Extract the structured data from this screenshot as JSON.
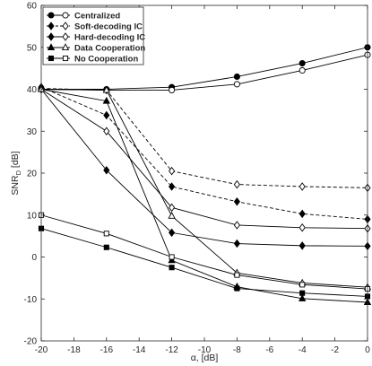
{
  "chart_data": {
    "type": "line",
    "xlabel": "α, [dB]",
    "ylabel": "SNR_D [dB]",
    "xlim": [
      -20,
      0
    ],
    "ylim": [
      -20,
      60
    ],
    "xticks": [
      -20,
      -18,
      -16,
      -14,
      -12,
      -10,
      -8,
      -6,
      -4,
      -2,
      0
    ],
    "yticks": [
      -20,
      -10,
      0,
      10,
      20,
      30,
      40,
      50,
      60
    ],
    "xtick_labels": [
      "-20",
      "-18",
      "-16",
      "-14",
      "-12",
      "-10",
      "-8",
      "-6",
      "-4",
      "-2",
      "0"
    ],
    "ytick_labels": [
      "-20",
      "-10",
      "0",
      "10",
      "20",
      "30",
      "40",
      "50",
      "60"
    ],
    "grid": false,
    "legend_position": "top-left",
    "x": [
      -20,
      -16,
      -12,
      -8,
      -4,
      0
    ],
    "series": [
      {
        "name": "Centralized",
        "style": "solid",
        "marker": "circle",
        "filled": true,
        "values": [
          40,
          40,
          40.5,
          43,
          46.2,
          50
        ]
      },
      {
        "name": "Centralized",
        "style": "solid",
        "marker": "circle",
        "filled": false,
        "values": [
          40,
          39.8,
          39.8,
          41.2,
          44.5,
          48.2
        ]
      },
      {
        "name": "Soft-decoding IC",
        "style": "dashed",
        "marker": "diamond",
        "filled": true,
        "values": [
          40.5,
          33.8,
          16.8,
          13.2,
          10.3,
          9
        ]
      },
      {
        "name": "Soft-decoding IC",
        "style": "dashed",
        "marker": "diamond",
        "filled": false,
        "values": [
          40.2,
          39.8,
          20.5,
          17.3,
          16.8,
          16.5
        ]
      },
      {
        "name": "Hard-decoding IC",
        "style": "solid",
        "marker": "diamond",
        "filled": true,
        "values": [
          40,
          20.7,
          5.8,
          3.2,
          2.7,
          2.6
        ]
      },
      {
        "name": "Hard-decoding IC",
        "style": "solid",
        "marker": "diamond",
        "filled": false,
        "values": [
          40,
          30,
          11.8,
          7.6,
          7,
          6.8
        ]
      },
      {
        "name": "Data Cooperation",
        "style": "solid",
        "marker": "triangle",
        "filled": true,
        "values": [
          40,
          37.2,
          -0.8,
          -7.1,
          -9.9,
          -10.8
        ]
      },
      {
        "name": "Data Cooperation",
        "style": "solid",
        "marker": "triangle",
        "filled": false,
        "values": [
          40,
          39.8,
          9.8,
          -3.8,
          -6.2,
          -7.2
        ]
      },
      {
        "name": "No Cooperation",
        "style": "solid",
        "marker": "square",
        "filled": true,
        "values": [
          6.8,
          2.3,
          -2.5,
          -7.5,
          -8.6,
          -9.4
        ]
      },
      {
        "name": "No Cooperation",
        "style": "solid",
        "marker": "square",
        "filled": false,
        "values": [
          10,
          5.6,
          0,
          -4.3,
          -6.6,
          -7.6
        ]
      }
    ],
    "legend": [
      {
        "label": "Centralized",
        "style": "solid",
        "marker": "circle"
      },
      {
        "label": "Soft-decoding IC",
        "style": "dashed",
        "marker": "diamond"
      },
      {
        "label": "Hard-decoding IC",
        "style": "solid",
        "marker": "diamond"
      },
      {
        "label": "Data Cooperation",
        "style": "solid",
        "marker": "triangle"
      },
      {
        "label": "No Cooperation",
        "style": "solid",
        "marker": "square"
      }
    ]
  }
}
